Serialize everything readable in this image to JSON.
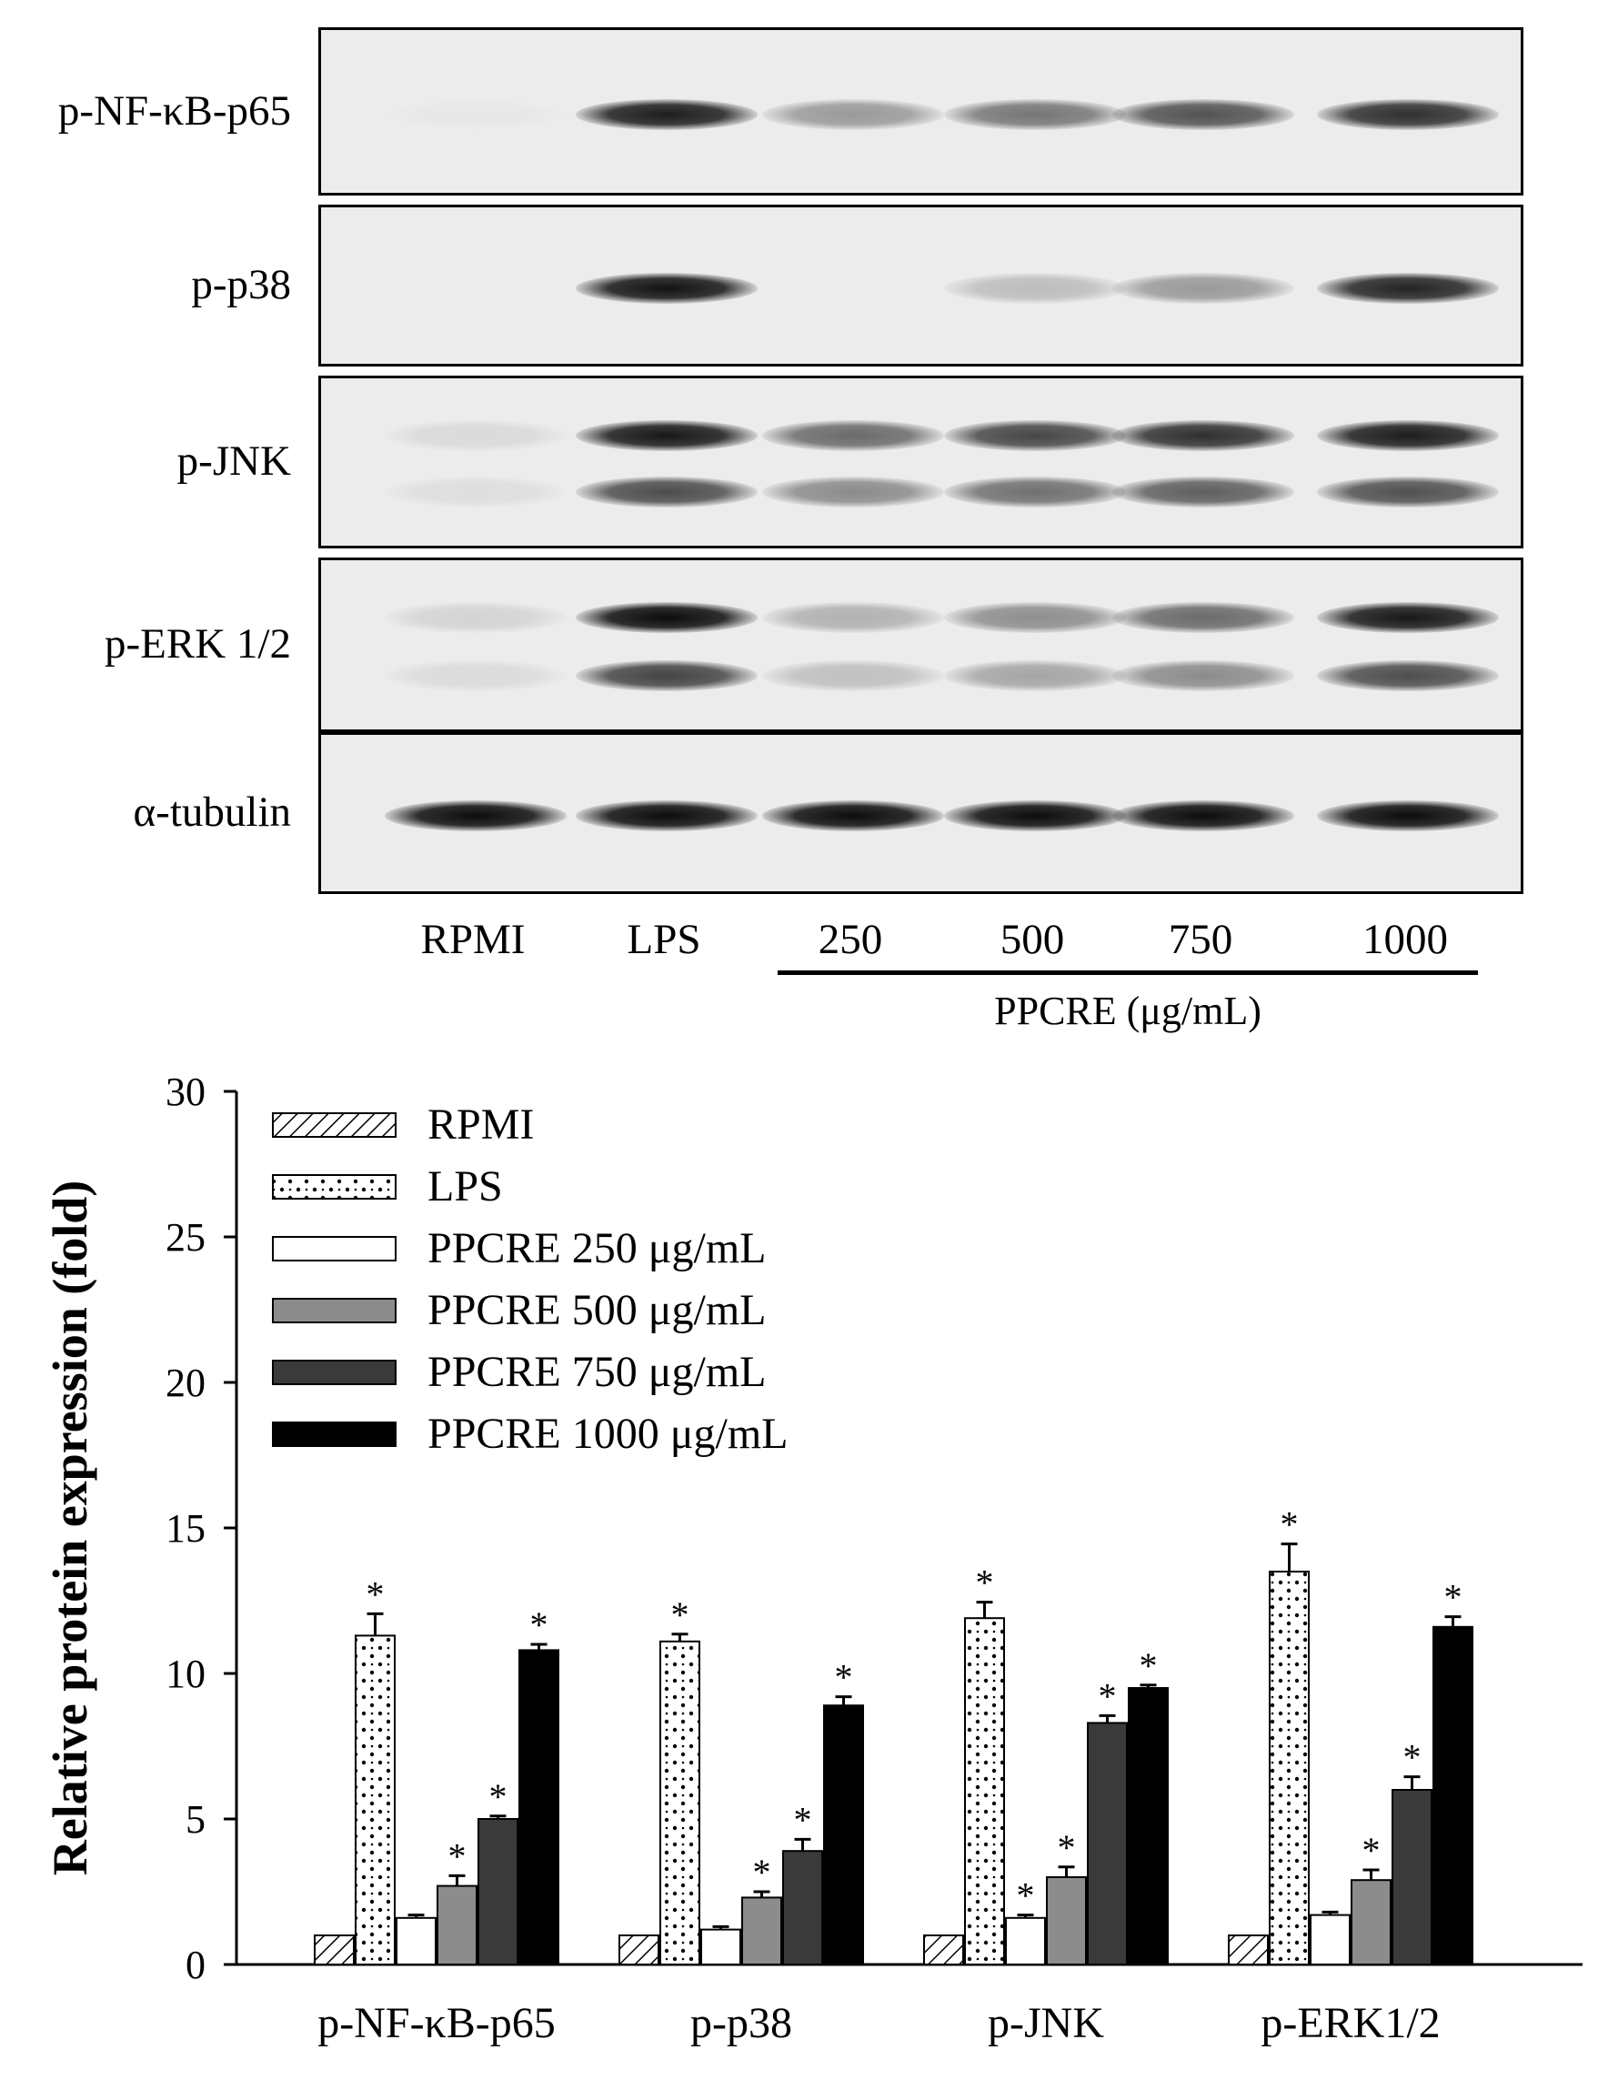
{
  "blot": {
    "rows": [
      {
        "label": "p-NF-κB-p65",
        "intensity": [
          0.02,
          0.88,
          0.35,
          0.5,
          0.65,
          0.8
        ],
        "bands": 1
      },
      {
        "label": "p-p38",
        "intensity": [
          0.0,
          0.92,
          0.0,
          0.2,
          0.35,
          0.85
        ],
        "bands": 1
      },
      {
        "label": "p-JNK",
        "intensity": [
          0.08,
          0.9,
          0.55,
          0.7,
          0.8,
          0.88
        ],
        "bands": 2
      },
      {
        "label": "p-ERK 1/2",
        "intensity": [
          0.1,
          0.95,
          0.25,
          0.4,
          0.55,
          0.9
        ],
        "bands": 2
      },
      {
        "label": "α-tubulin",
        "intensity": [
          0.95,
          0.95,
          0.95,
          0.95,
          0.95,
          0.95
        ],
        "bands": 1
      }
    ],
    "lanes": [
      "RPMI",
      "LPS",
      "250",
      "500",
      "750",
      "1000"
    ],
    "treatment_label": "PPCRE (μg/mL)"
  },
  "chart_data": {
    "type": "bar",
    "categories": [
      "p-NF-κB-p65",
      "p-p38",
      "p-JNK",
      "p-ERK1/2"
    ],
    "ylabel": "Relative protein expression (fold)",
    "ylim": [
      0,
      30
    ],
    "yticks": [
      0,
      5,
      10,
      15,
      20,
      25,
      30
    ],
    "legend_position": "top-left",
    "series": [
      {
        "name": "RPMI",
        "pattern": "hatch",
        "values": [
          1.0,
          1.0,
          1.0,
          1.0
        ],
        "errors": [
          0,
          0,
          0,
          0
        ],
        "sig": [
          false,
          false,
          false,
          false
        ]
      },
      {
        "name": "LPS",
        "pattern": "dots",
        "values": [
          11.3,
          11.1,
          11.9,
          13.5
        ],
        "errors": [
          0.75,
          0.25,
          0.55,
          0.95
        ],
        "sig": [
          true,
          true,
          true,
          true
        ]
      },
      {
        "name": "PPCRE 250 μg/mL",
        "pattern": "white",
        "values": [
          1.6,
          1.2,
          1.6,
          1.7
        ],
        "errors": [
          0.1,
          0.1,
          0.1,
          0.1
        ],
        "sig": [
          false,
          false,
          true,
          false
        ]
      },
      {
        "name": "PPCRE 500 μg/mL",
        "pattern": "#8c8c8c",
        "values": [
          2.7,
          2.3,
          3.0,
          2.9
        ],
        "errors": [
          0.35,
          0.2,
          0.35,
          0.35
        ],
        "sig": [
          true,
          true,
          true,
          true
        ]
      },
      {
        "name": "PPCRE 750 μg/mL",
        "pattern": "#3a3a3a",
        "values": [
          5.0,
          3.9,
          8.3,
          6.0
        ],
        "errors": [
          0.1,
          0.4,
          0.25,
          0.45
        ],
        "sig": [
          true,
          true,
          true,
          true
        ]
      },
      {
        "name": "PPCRE 1000 μg/mL",
        "pattern": "#000000",
        "values": [
          10.8,
          8.9,
          9.5,
          11.6
        ],
        "errors": [
          0.2,
          0.3,
          0.1,
          0.35
        ],
        "sig": [
          true,
          true,
          true,
          true
        ]
      }
    ],
    "sig_marker": "*"
  }
}
